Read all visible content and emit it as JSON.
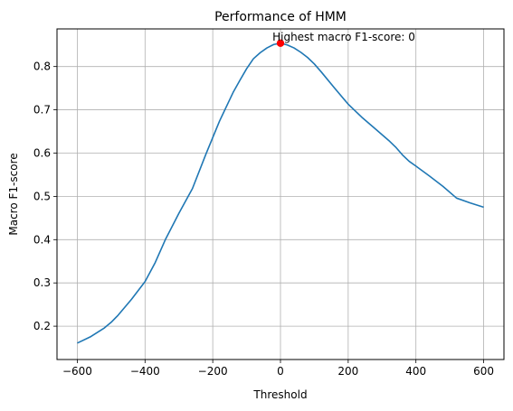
{
  "chart_data": {
    "type": "line",
    "title": "Performance of HMM",
    "xlabel": "Threshold",
    "ylabel": "Macro F1-score",
    "xlim": [
      -660,
      660
    ],
    "ylim": [
      0.123,
      0.887
    ],
    "xticks": [
      -600,
      -400,
      -200,
      0,
      200,
      400,
      600
    ],
    "xtick_labels": [
      "−600",
      "−400",
      "−200",
      "0",
      "200",
      "400",
      "600"
    ],
    "yticks": [
      0.2,
      0.3,
      0.4,
      0.5,
      0.6,
      0.7,
      0.8
    ],
    "ytick_labels": [
      "0.2",
      "0.3",
      "0.4",
      "0.5",
      "0.6",
      "0.7",
      "0.8"
    ],
    "grid": true,
    "series": [
      {
        "color": "#1f77b4",
        "x": [
          -600,
          -560,
          -520,
          -500,
          -480,
          -440,
          -400,
          -370,
          -340,
          -300,
          -260,
          -220,
          -180,
          -140,
          -120,
          -100,
          -80,
          -60,
          -40,
          -20,
          0,
          20,
          40,
          60,
          80,
          100,
          120,
          160,
          200,
          240,
          280,
          320,
          340,
          360,
          380,
          400,
          440,
          480,
          520,
          560,
          600
        ],
        "y": [
          0.161,
          0.176,
          0.196,
          0.209,
          0.225,
          0.262,
          0.303,
          0.347,
          0.4,
          0.461,
          0.518,
          0.598,
          0.674,
          0.74,
          0.768,
          0.795,
          0.818,
          0.832,
          0.843,
          0.851,
          0.854,
          0.85,
          0.843,
          0.833,
          0.821,
          0.806,
          0.788,
          0.75,
          0.713,
          0.683,
          0.656,
          0.629,
          0.614,
          0.596,
          0.581,
          0.57,
          0.547,
          0.523,
          0.496,
          0.485,
          0.475
        ]
      }
    ],
    "highlight": {
      "x": 0,
      "y": 0.854,
      "color": "#ff0000"
    },
    "annotation": "Highest macro F1-score: 0"
  }
}
